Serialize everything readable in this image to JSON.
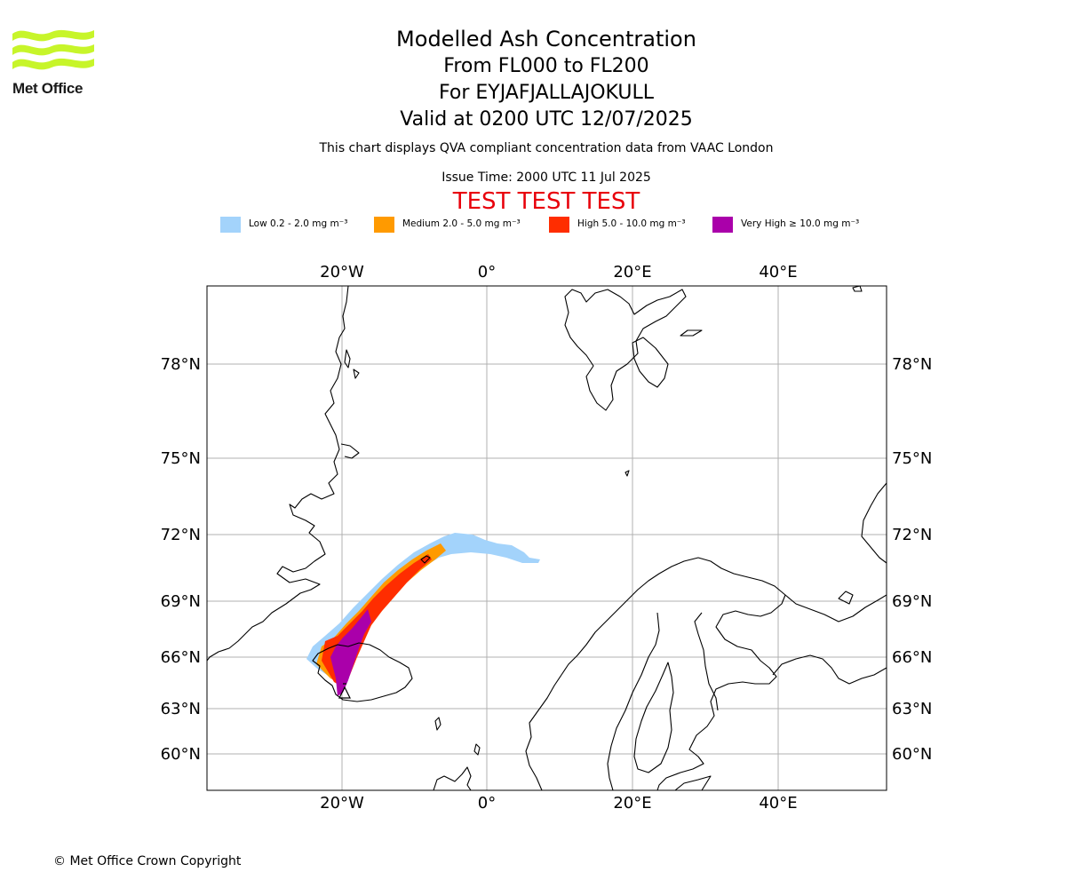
{
  "header": {
    "logo_text": "Met Office",
    "title": "Modelled Ash Concentration",
    "levels": "From FL000 to FL200",
    "volcano": "For EYJAFJALLAJOKULL",
    "valid": "Valid at 0200 UTC 12/07/2025",
    "note": "This chart displays QVA compliant concentration data from VAAC London",
    "issue": "Issue Time: 2000 UTC 11 Jul 2025",
    "test_banner": "TEST TEST TEST"
  },
  "legend": [
    {
      "label": "Low 0.2 - 2.0 mg m⁻³",
      "color": "#a3d3fb"
    },
    {
      "label": "Medium 2.0 - 5.0 mg m⁻³",
      "color": "#ff9a00"
    },
    {
      "label": "High 5.0 - 10.0 mg m⁻³",
      "color": "#ff2d00"
    },
    {
      "label": "Very High  ≥  10.0 mg m⁻³",
      "color": "#aa00aa"
    }
  ],
  "map": {
    "longitude_labels": [
      "20°W",
      "0°",
      "20°E",
      "40°E"
    ],
    "latitude_labels": [
      "78°N",
      "75°N",
      "72°N",
      "69°N",
      "66°N",
      "63°N",
      "60°N"
    ],
    "gridline_color": "#b0b0b0"
  },
  "footer": {
    "copyright": "© Met Office Crown Copyright"
  }
}
